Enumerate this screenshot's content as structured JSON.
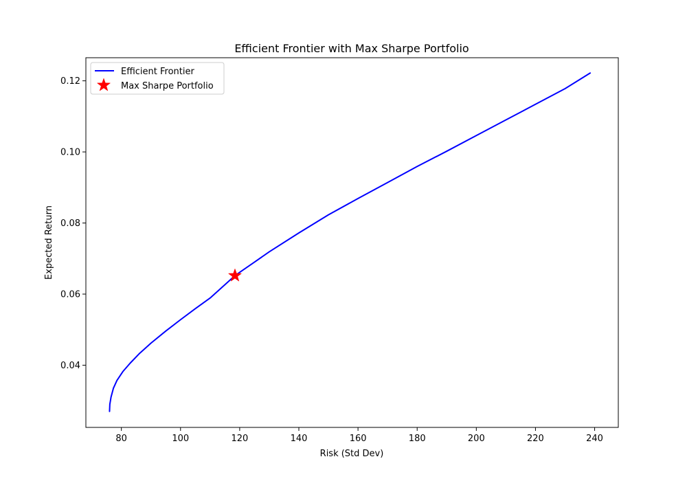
{
  "chart_data": {
    "type": "line",
    "title": "Efficient Frontier with Max Sharpe Portfolio",
    "xlabel": "Risk (Std Dev)",
    "ylabel": "Expected Return",
    "xlim": [
      68,
      248
    ],
    "ylim": [
      0.0225,
      0.1265
    ],
    "xticks": [
      80,
      100,
      120,
      140,
      160,
      180,
      200,
      220,
      240
    ],
    "yticks": [
      0.04,
      0.06,
      0.08,
      0.1,
      0.12
    ],
    "ytick_labels": [
      "0.04",
      "0.06",
      "0.08",
      "0.10",
      "0.12"
    ],
    "grid": false,
    "legend_position": "top-left",
    "series": [
      {
        "name": "Efficient Frontier",
        "kind": "line",
        "color": "#0000ff",
        "x": [
          76.0,
          76.1,
          76.5,
          77.3,
          78.5,
          80.5,
          83,
          86,
          90,
          95,
          100,
          105,
          110,
          118.4,
          125,
          130,
          140,
          150,
          160,
          170,
          180,
          190,
          200,
          210,
          220,
          230,
          238.5
        ],
        "y": [
          0.027,
          0.029,
          0.031,
          0.0335,
          0.0357,
          0.0382,
          0.0406,
          0.0432,
          0.0462,
          0.0496,
          0.0528,
          0.0559,
          0.0589,
          0.0652,
          0.069,
          0.0719,
          0.0772,
          0.0823,
          0.0869,
          0.0914,
          0.0959,
          0.1002,
          0.1046,
          0.109,
          0.1134,
          0.1178,
          0.1222
        ]
      },
      {
        "name": "Max Sharpe Portfolio",
        "kind": "marker",
        "marker": "star",
        "color": "#ff0000",
        "x": [
          118.4
        ],
        "y": [
          0.0652
        ]
      }
    ]
  }
}
